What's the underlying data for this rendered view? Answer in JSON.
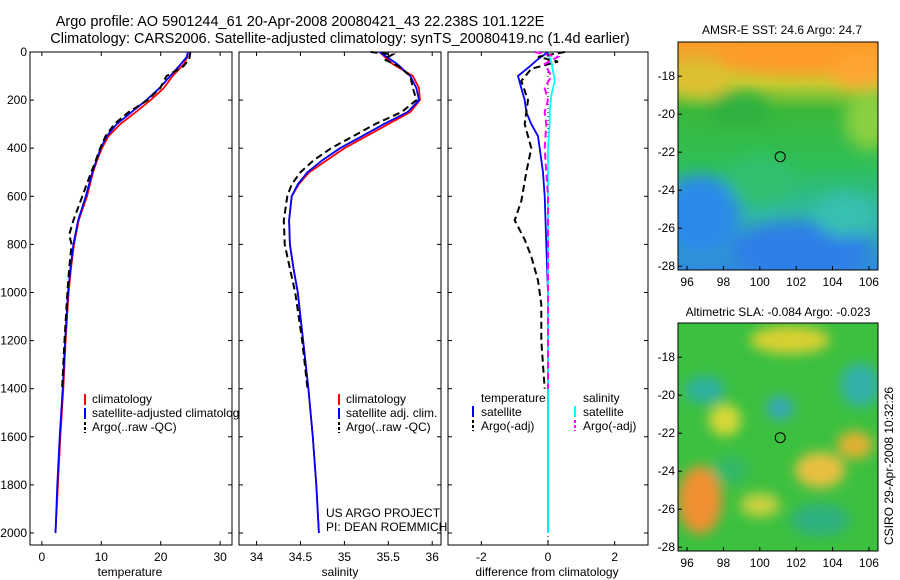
{
  "header": {
    "title_line1": "Argo profile: AO 5901244_61 20-Apr-2008 20080421_43 22.238S 101.122E",
    "title_line2": "Climatology: CARS2006. Satellite-adjusted climatology: synTS_20080419.nc (1.4d earlier)"
  },
  "chart_data": [
    {
      "type": "line",
      "xlabel": "temperature",
      "ylabel": "",
      "xlim": [
        -2,
        32
      ],
      "ylim": [
        0,
        2050
      ],
      "y_inverted": true,
      "xticks": [
        0,
        10,
        20,
        30
      ],
      "yticks": [
        0,
        200,
        400,
        600,
        800,
        1000,
        1200,
        1400,
        1600,
        1800,
        2000
      ],
      "legend": {
        "placement": "bottom-right",
        "entries": [
          "climatology",
          "satellite-adjusted climatolog",
          "Argo(..raw -QC)"
        ]
      },
      "series": [
        {
          "name": "climatology",
          "color": "#ff0000",
          "style": "solid",
          "points": [
            [
              24.6,
              0
            ],
            [
              24.5,
              20
            ],
            [
              23.9,
              50
            ],
            [
              22.0,
              100
            ],
            [
              20.5,
              150
            ],
            [
              18.3,
              200
            ],
            [
              15.8,
              250
            ],
            [
              13.2,
              300
            ],
            [
              11.2,
              350
            ],
            [
              10.1,
              400
            ],
            [
              9.3,
              450
            ],
            [
              8.6,
              500
            ],
            [
              7.6,
              600
            ],
            [
              6.2,
              700
            ],
            [
              5.4,
              800
            ],
            [
              4.9,
              900
            ],
            [
              4.5,
              1000
            ],
            [
              4.0,
              1200
            ],
            [
              3.6,
              1400
            ],
            [
              3.1,
              1600
            ],
            [
              2.7,
              1800
            ],
            [
              2.3,
              2000
            ]
          ]
        },
        {
          "name": "satellite-adjusted climatolog",
          "color": "#0000ff",
          "style": "solid",
          "points": [
            [
              24.6,
              0
            ],
            [
              24.4,
              20
            ],
            [
              23.4,
              50
            ],
            [
              21.6,
              100
            ],
            [
              19.8,
              150
            ],
            [
              17.6,
              200
            ],
            [
              15.1,
              250
            ],
            [
              12.6,
              300
            ],
            [
              10.9,
              350
            ],
            [
              9.9,
              400
            ],
            [
              9.2,
              450
            ],
            [
              8.5,
              500
            ],
            [
              7.4,
              600
            ],
            [
              6.1,
              700
            ],
            [
              5.3,
              800
            ],
            [
              4.8,
              900
            ],
            [
              4.4,
              1000
            ],
            [
              3.9,
              1200
            ],
            [
              3.5,
              1400
            ],
            [
              3.0,
              1600
            ],
            [
              2.6,
              1800
            ],
            [
              2.3,
              2000
            ]
          ]
        },
        {
          "name": "Argo(..raw -QC)",
          "color": "#000000",
          "style": "dashed",
          "points": [
            [
              25.0,
              0
            ],
            [
              24.8,
              30
            ],
            [
              23.8,
              60
            ],
            [
              21.0,
              100
            ],
            [
              19.9,
              150
            ],
            [
              17.8,
              200
            ],
            [
              14.6,
              250
            ],
            [
              12.2,
              300
            ],
            [
              10.7,
              350
            ],
            [
              9.8,
              400
            ],
            [
              9.1,
              450
            ],
            [
              8.3,
              500
            ],
            [
              6.8,
              600
            ],
            [
              5.3,
              700
            ],
            [
              4.6,
              760
            ],
            [
              5.0,
              800
            ],
            [
              4.6,
              900
            ],
            [
              4.3,
              1000
            ],
            [
              3.8,
              1200
            ],
            [
              3.4,
              1400
            ]
          ]
        }
      ]
    },
    {
      "type": "line",
      "xlabel": "salinity",
      "ylabel": "",
      "xlim": [
        33.8,
        36.1
      ],
      "ylim": [
        0,
        2050
      ],
      "y_inverted": true,
      "xticks": [
        34,
        34.5,
        35,
        35.5,
        36
      ],
      "legend": {
        "placement": "bottom-right",
        "entries": [
          "climatology",
          "satellite adj. clim.",
          "Argo(..raw -QC)"
        ]
      },
      "annotations": [
        "US ARGO PROJECT",
        "PI: DEAN ROEMMICH"
      ],
      "series": [
        {
          "name": "climatology",
          "color": "#ff0000",
          "style": "solid",
          "points": [
            [
              35.4,
              0
            ],
            [
              35.55,
              50
            ],
            [
              35.78,
              100
            ],
            [
              35.85,
              150
            ],
            [
              35.86,
              200
            ],
            [
              35.75,
              250
            ],
            [
              35.5,
              300
            ],
            [
              35.25,
              350
            ],
            [
              35.0,
              400
            ],
            [
              34.8,
              450
            ],
            [
              34.6,
              500
            ],
            [
              34.48,
              550
            ],
            [
              34.4,
              600
            ],
            [
              34.37,
              700
            ],
            [
              34.38,
              800
            ],
            [
              34.42,
              900
            ],
            [
              34.47,
              1000
            ],
            [
              34.53,
              1200
            ],
            [
              34.59,
              1400
            ],
            [
              34.64,
              1600
            ],
            [
              34.68,
              1800
            ],
            [
              34.71,
              2000
            ]
          ]
        },
        {
          "name": "satellite adj. clim.",
          "color": "#0000ff",
          "style": "solid",
          "points": [
            [
              35.4,
              0
            ],
            [
              35.6,
              50
            ],
            [
              35.75,
              100
            ],
            [
              35.82,
              150
            ],
            [
              35.85,
              200
            ],
            [
              35.72,
              250
            ],
            [
              35.45,
              300
            ],
            [
              35.2,
              350
            ],
            [
              34.95,
              400
            ],
            [
              34.75,
              450
            ],
            [
              34.58,
              500
            ],
            [
              34.47,
              550
            ],
            [
              34.4,
              600
            ],
            [
              34.37,
              700
            ],
            [
              34.38,
              800
            ],
            [
              34.42,
              900
            ],
            [
              34.47,
              1000
            ],
            [
              34.53,
              1200
            ],
            [
              34.59,
              1400
            ],
            [
              34.64,
              1600
            ],
            [
              34.68,
              1800
            ],
            [
              34.71,
              2000
            ]
          ]
        },
        {
          "name": "Argo(..raw -QC)",
          "color": "#000000",
          "style": "dashed",
          "points": [
            [
              35.3,
              0
            ],
            [
              35.55,
              10
            ],
            [
              35.45,
              30
            ],
            [
              35.62,
              60
            ],
            [
              35.75,
              100
            ],
            [
              35.78,
              150
            ],
            [
              35.82,
              200
            ],
            [
              35.65,
              250
            ],
            [
              35.35,
              300
            ],
            [
              35.1,
              350
            ],
            [
              34.85,
              400
            ],
            [
              34.65,
              450
            ],
            [
              34.5,
              500
            ],
            [
              34.4,
              550
            ],
            [
              34.35,
              600
            ],
            [
              34.31,
              700
            ],
            [
              34.32,
              800
            ],
            [
              34.38,
              900
            ],
            [
              34.44,
              1000
            ],
            [
              34.52,
              1200
            ],
            [
              34.58,
              1400
            ]
          ]
        }
      ]
    },
    {
      "type": "line",
      "xlabel": "difference from climatology",
      "ylabel": "",
      "xlim": [
        -3,
        3
      ],
      "ylim": [
        0,
        2050
      ],
      "y_inverted": true,
      "xticks": [
        -2,
        0,
        2
      ],
      "zero_line": "dotted",
      "legend": {
        "placement": "bottom",
        "temperature_header": "temperature",
        "salinity_header": "salinity",
        "entries": [
          "satellite",
          "Argo(-adj)",
          "satellite",
          "Argo(-adj)"
        ]
      },
      "series": [
        {
          "name": "satellite",
          "group": "temperature",
          "color": "#0000ff",
          "style": "solid",
          "points": [
            [
              0.0,
              0
            ],
            [
              -0.3,
              30
            ],
            [
              -0.55,
              60
            ],
            [
              -0.9,
              100
            ],
            [
              -0.8,
              150
            ],
            [
              -0.7,
              200
            ],
            [
              -0.65,
              250
            ],
            [
              -0.5,
              300
            ],
            [
              -0.3,
              350
            ],
            [
              -0.25,
              400
            ],
            [
              -0.15,
              500
            ],
            [
              -0.1,
              600
            ],
            [
              -0.05,
              800
            ],
            [
              0.0,
              1000
            ],
            [
              0.0,
              2000
            ]
          ]
        },
        {
          "name": "Argo(-adj)",
          "group": "temperature",
          "color": "#000000",
          "style": "dashed",
          "points": [
            [
              0.5,
              0
            ],
            [
              -0.3,
              20
            ],
            [
              0.3,
              40
            ],
            [
              -0.5,
              70
            ],
            [
              -0.8,
              120
            ],
            [
              -0.6,
              200
            ],
            [
              -0.7,
              300
            ],
            [
              -0.5,
              400
            ],
            [
              -0.65,
              500
            ],
            [
              -0.8,
              620
            ],
            [
              -1.0,
              700
            ],
            [
              -0.7,
              780
            ],
            [
              -0.5,
              850
            ],
            [
              -0.3,
              950
            ],
            [
              -0.2,
              1050
            ],
            [
              -0.2,
              1200
            ],
            [
              -0.1,
              1400
            ]
          ]
        },
        {
          "name": "satellite",
          "group": "salinity",
          "color": "#00ffff",
          "style": "solid",
          "points": [
            [
              0.0,
              0
            ],
            [
              0.1,
              40
            ],
            [
              0.15,
              80
            ],
            [
              0.2,
              120
            ],
            [
              0.1,
              180
            ],
            [
              0.05,
              250
            ],
            [
              0.05,
              300
            ],
            [
              0.0,
              400
            ],
            [
              0.0,
              600
            ],
            [
              0.0,
              800
            ],
            [
              0.0,
              2000
            ]
          ]
        },
        {
          "name": "Argo(-adj)",
          "group": "salinity",
          "color": "#ff00ff",
          "style": "dashed",
          "points": [
            [
              -0.4,
              0
            ],
            [
              0.3,
              20
            ],
            [
              -0.1,
              50
            ],
            [
              0.1,
              100
            ],
            [
              -0.1,
              150
            ],
            [
              0.0,
              200
            ],
            [
              -0.1,
              250
            ],
            [
              -0.05,
              300
            ],
            [
              -0.1,
              400
            ],
            [
              -0.05,
              500
            ],
            [
              0.0,
              600
            ],
            [
              0.0,
              800
            ],
            [
              0.0,
              1000
            ],
            [
              0.0,
              1200
            ],
            [
              0.0,
              1400
            ]
          ]
        }
      ]
    },
    {
      "type": "heatmap",
      "title": "AMSR-E SST: 24.6  Argo: 24.7",
      "xlim": [
        95.5,
        106.5
      ],
      "ylim": [
        -28.2,
        -16.2
      ],
      "xticks": [
        96,
        98,
        100,
        102,
        104,
        106
      ],
      "yticks": [
        -18,
        -20,
        -22,
        -24,
        -26,
        -28
      ],
      "marker": {
        "lon": 101.122,
        "lat": -22.238
      }
    },
    {
      "type": "heatmap",
      "title": "Altimetric SLA: -0.084  Argo: -0.023",
      "xlim": [
        95.5,
        106.5
      ],
      "ylim": [
        -28.2,
        -16.2
      ],
      "xticks": [
        96,
        98,
        100,
        102,
        104,
        106
      ],
      "yticks": [
        -18,
        -20,
        -22,
        -24,
        -26,
        -28
      ],
      "marker": {
        "lon": 101.122,
        "lat": -22.238
      }
    }
  ],
  "footer": {
    "timestamp": "CSIRO 29-Apr-2008 10:32:26"
  },
  "colors": {
    "red": "#ff0000",
    "blue": "#0000ff",
    "cyan": "#00ffff",
    "magenta": "#ff00ff",
    "black": "#000000"
  }
}
